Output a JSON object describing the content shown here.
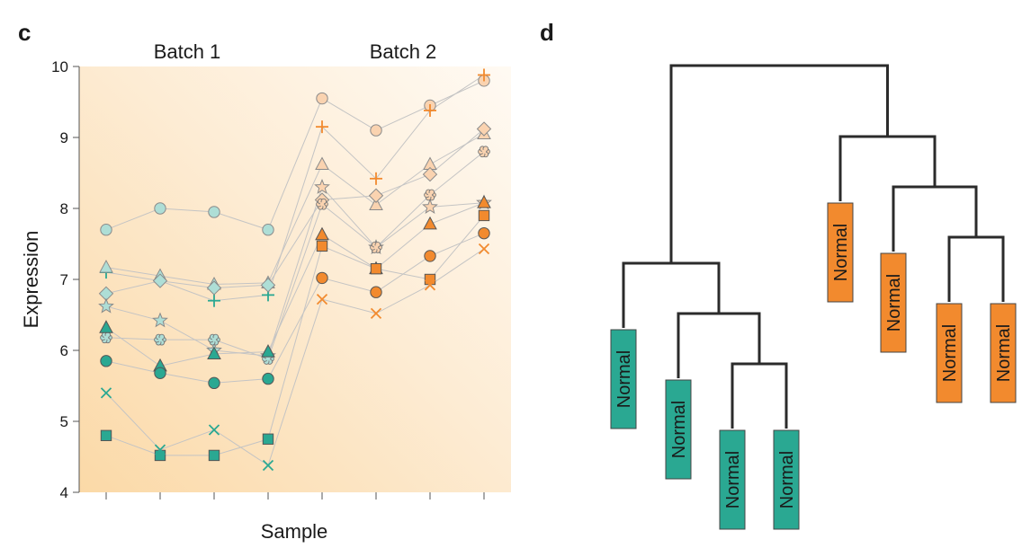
{
  "panel_c": {
    "letter": "c",
    "chart_data": {
      "type": "line",
      "title": "",
      "xlabel": "Sample",
      "ylabel": "Expression",
      "ylim": [
        4,
        10
      ],
      "yticks": [
        4,
        5,
        6,
        7,
        8,
        9,
        10
      ],
      "x": [
        1,
        2,
        3,
        4,
        5,
        6,
        7,
        8
      ],
      "groups": [
        {
          "name": "Batch 1",
          "x_range": [
            1,
            4
          ],
          "color": "#2aa892"
        },
        {
          "name": "Batch 2",
          "x_range": [
            5,
            8
          ],
          "color": "#f28a2e"
        }
      ],
      "series": [
        {
          "marker": "circle-open",
          "values": [
            7.7,
            8.0,
            7.95,
            7.7,
            9.55,
            9.1,
            9.45,
            9.8
          ]
        },
        {
          "marker": "plus",
          "values": [
            7.1,
            6.98,
            6.7,
            6.78,
            9.15,
            8.42,
            9.38,
            9.88
          ]
        },
        {
          "marker": "triangle-open",
          "values": [
            7.17,
            7.05,
            6.93,
            6.95,
            8.62,
            8.05,
            8.62,
            9.05
          ]
        },
        {
          "marker": "diamond-open",
          "values": [
            6.8,
            6.98,
            6.88,
            6.92,
            8.12,
            8.18,
            8.48,
            9.12
          ]
        },
        {
          "marker": "star",
          "values": [
            6.62,
            6.42,
            6.0,
            5.92,
            8.3,
            7.45,
            8.02,
            8.08
          ]
        },
        {
          "marker": "flower",
          "values": [
            6.18,
            6.15,
            6.15,
            5.88,
            8.06,
            7.45,
            8.19,
            8.8
          ]
        },
        {
          "marker": "triangle-filled",
          "values": [
            6.32,
            5.78,
            5.95,
            5.98,
            7.63,
            7.15,
            7.78,
            8.08
          ]
        },
        {
          "marker": "circle-filled",
          "values": [
            5.85,
            5.68,
            5.54,
            5.6,
            7.02,
            6.82,
            7.33,
            7.65
          ]
        },
        {
          "marker": "square-filled",
          "values": [
            4.8,
            4.52,
            4.52,
            4.75,
            7.47,
            7.15,
            7.0,
            7.9
          ]
        },
        {
          "marker": "cross",
          "values": [
            5.4,
            4.6,
            4.88,
            4.38,
            6.72,
            6.52,
            6.92,
            7.43
          ]
        }
      ]
    }
  },
  "panel_d": {
    "letter": "d",
    "leaf_label": "Normal",
    "tree_color": "#2b2b2b",
    "leaves": [
      {
        "id": "t1",
        "label": "Normal",
        "batch": "Batch 1",
        "color": "#2aa892"
      },
      {
        "id": "t2",
        "label": "Normal",
        "batch": "Batch 1",
        "color": "#2aa892"
      },
      {
        "id": "t3",
        "label": "Normal",
        "batch": "Batch 1",
        "color": "#2aa892"
      },
      {
        "id": "t4",
        "label": "Normal",
        "batch": "Batch 1",
        "color": "#2aa892"
      },
      {
        "id": "o1",
        "label": "Normal",
        "batch": "Batch 2",
        "color": "#f28a2e"
      },
      {
        "id": "o2",
        "label": "Normal",
        "batch": "Batch 2",
        "color": "#f28a2e"
      },
      {
        "id": "o3",
        "label": "Normal",
        "batch": "Batch 2",
        "color": "#f28a2e"
      },
      {
        "id": "o4",
        "label": "Normal",
        "batch": "Batch 2",
        "color": "#f28a2e"
      }
    ],
    "tree": {
      "children": [
        {
          "children": [
            {
              "leaf": "t1"
            },
            {
              "children": [
                {
                  "leaf": "t2"
                },
                {
                  "children": [
                    {
                      "leaf": "t3"
                    },
                    {
                      "leaf": "t4"
                    }
                  ]
                }
              ]
            }
          ]
        },
        {
          "children": [
            {
              "leaf": "o1"
            },
            {
              "children": [
                {
                  "leaf": "o2"
                },
                {
                  "children": [
                    {
                      "leaf": "o3"
                    },
                    {
                      "leaf": "o4"
                    }
                  ]
                }
              ]
            }
          ]
        }
      ]
    }
  }
}
